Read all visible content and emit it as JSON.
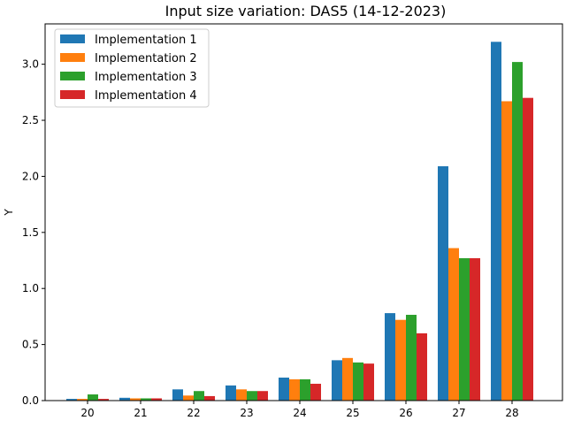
{
  "chart_data": {
    "type": "bar",
    "title": "Input size variation: DAS5 (14-12-2023)",
    "xlabel": "",
    "ylabel": "Y",
    "categories": [
      "20",
      "21",
      "22",
      "23",
      "24",
      "25",
      "26",
      "27",
      "28"
    ],
    "series": [
      {
        "name": "Implementation 1",
        "color": "#1f77b4",
        "values": [
          0.015,
          0.025,
          0.1,
          0.135,
          0.205,
          0.36,
          0.78,
          2.09,
          3.2
        ]
      },
      {
        "name": "Implementation 2",
        "color": "#ff7f0e",
        "values": [
          0.015,
          0.02,
          0.045,
          0.1,
          0.19,
          0.38,
          0.72,
          1.36,
          2.67
        ]
      },
      {
        "name": "Implementation 3",
        "color": "#2ca02c",
        "values": [
          0.055,
          0.02,
          0.085,
          0.085,
          0.19,
          0.34,
          0.765,
          1.27,
          3.02
        ]
      },
      {
        "name": "Implementation 4",
        "color": "#d62728",
        "values": [
          0.015,
          0.02,
          0.04,
          0.085,
          0.15,
          0.33,
          0.6,
          1.27,
          2.7
        ]
      }
    ],
    "yticks": [
      0.0,
      0.5,
      1.0,
      1.5,
      2.0,
      2.5,
      3.0
    ],
    "ytick_labels": [
      "0.0",
      "0.5",
      "1.0",
      "1.5",
      "2.0",
      "2.5",
      "3.0"
    ],
    "ylim": [
      0,
      3.36
    ],
    "grid": false,
    "legend_position": "top-left"
  }
}
